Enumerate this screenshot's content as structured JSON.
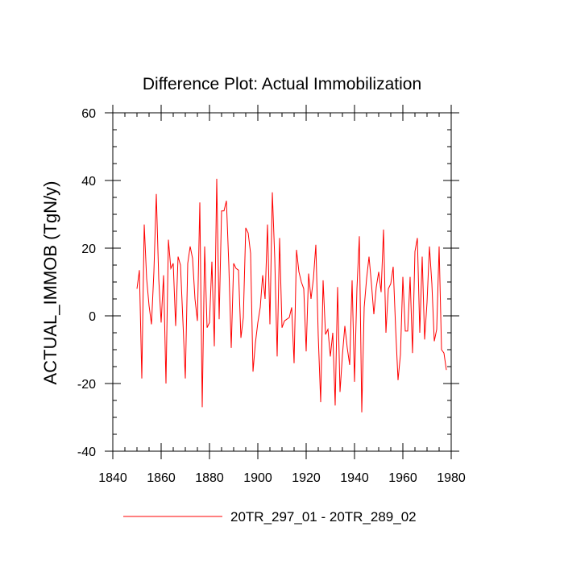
{
  "chart_data": {
    "type": "line",
    "title": "Difference Plot: Actual Immobilization",
    "xlabel": "",
    "ylabel": "ACTUAL_IMMOB  (TgN/y)",
    "xlim": [
      1840,
      1980
    ],
    "ylim": [
      -40,
      60
    ],
    "x_ticks": [
      1840,
      1860,
      1880,
      1900,
      1920,
      1940,
      1960,
      1980
    ],
    "y_ticks": [
      -40,
      -20,
      0,
      20,
      40,
      60
    ],
    "x_minor_step": 5,
    "y_minor_step": 5,
    "legend_position": "bottom-center",
    "line_color": "#ff0000",
    "series": [
      {
        "name": "20TR_297_01 - 20TR_289_02",
        "x_start": 1850,
        "x_step": 1,
        "values": [
          8,
          13.5,
          -18.5,
          27,
          11,
          3,
          -2.5,
          13,
          36,
          11,
          -2,
          12,
          -20,
          22.5,
          14,
          15.5,
          -3,
          17.5,
          15,
          -1.5,
          -18.5,
          15.5,
          20.5,
          17,
          5,
          -1.5,
          33.5,
          -27,
          20.5,
          -3.5,
          -2,
          16,
          -9,
          40.5,
          -1,
          31,
          31,
          34,
          15,
          -9.5,
          15.5,
          14,
          13.5,
          -6.5,
          -0.5,
          26,
          24.5,
          18.5,
          -16.5,
          -8,
          -2,
          2.5,
          12,
          5,
          27,
          -2.5,
          36.5,
          17,
          -12,
          23,
          -3.5,
          -1.5,
          -1,
          -0.5,
          2.5,
          -14,
          19.5,
          13,
          10,
          8,
          -10.5,
          12.5,
          5,
          11,
          21,
          -6,
          -25.5,
          10.5,
          -5.5,
          -4,
          -12,
          -5,
          -26.5,
          8.5,
          -22.5,
          -11.5,
          -3,
          -9.5,
          -14.5,
          10.5,
          -19.5,
          8,
          23.5,
          -28.5,
          2.5,
          11,
          17.5,
          9.5,
          0.5,
          8.5,
          13,
          7,
          25.5,
          -5,
          8,
          9.5,
          14.5,
          -3.5,
          -19,
          -11.5,
          11.5,
          -4.5,
          -4.5,
          11.5,
          -11,
          19,
          23,
          -5,
          17.5,
          -7,
          4,
          20.5,
          9.5,
          -7.5,
          -4,
          20.5,
          -10,
          -11,
          -16
        ]
      }
    ]
  }
}
